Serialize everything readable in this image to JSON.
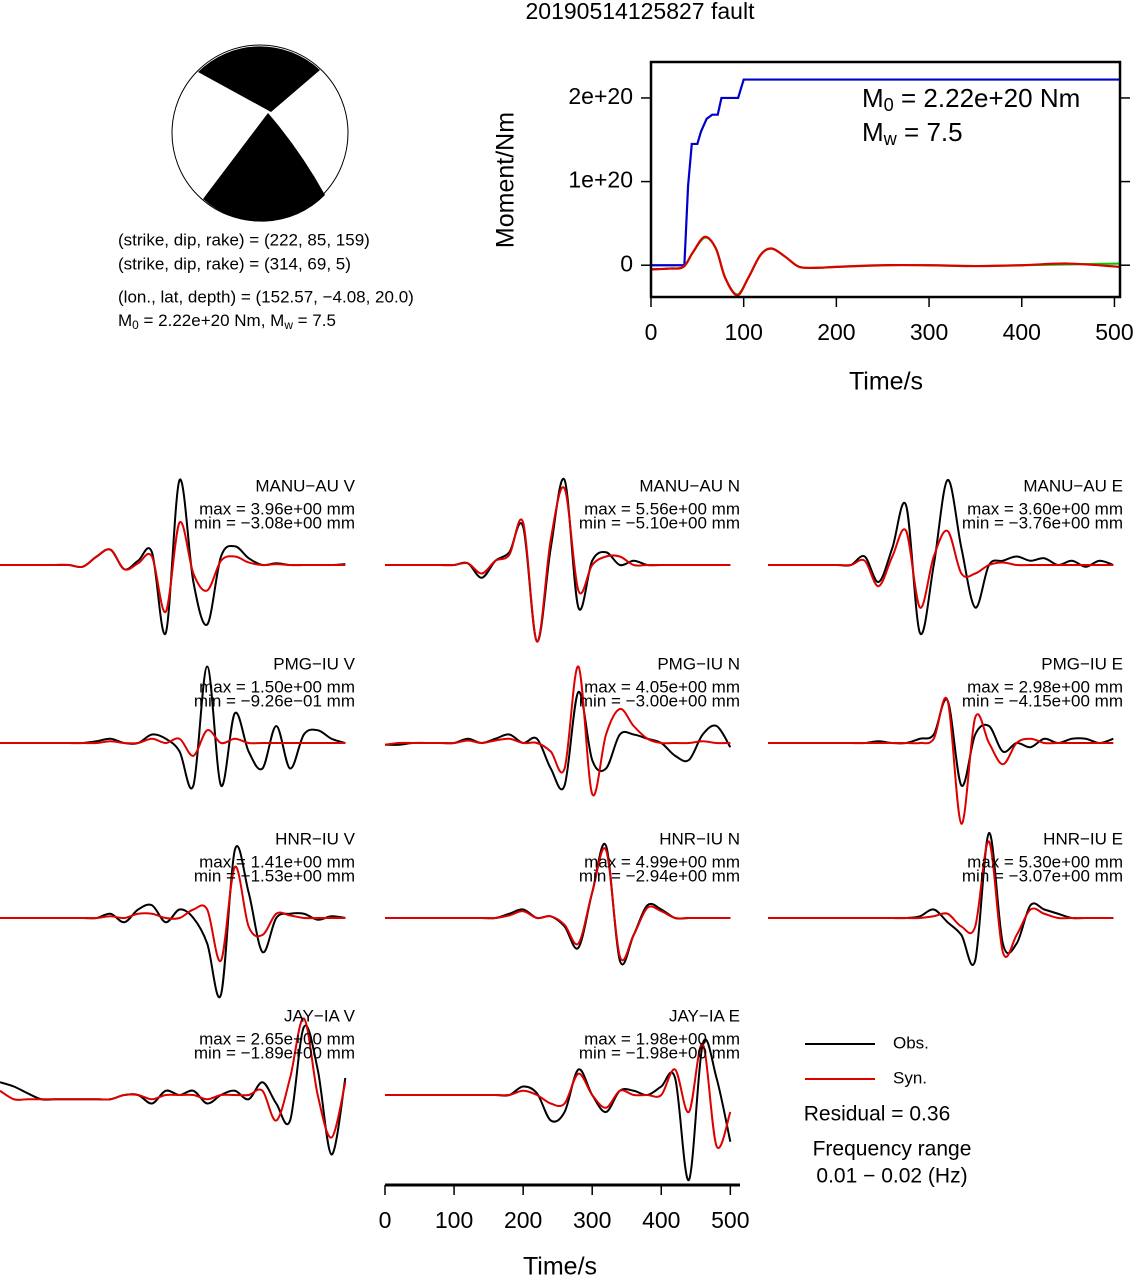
{
  "title": "20190514125827 fault",
  "info": {
    "line1": "(strike, dip, rake) = (222, 85, 159)",
    "line2": "(strike, dip, rake) = (314, 69, 5)",
    "line3": "(lon., lat, depth) = (152.57, −4.08, 20.0)",
    "line4": {
      "m": "M",
      "sub0": "0",
      "mid": " = 2.22e+20 Nm, M",
      "sub1": "w",
      "end": " = 7.5"
    }
  },
  "chart_data": [
    {
      "type": "moment",
      "xlabel": "Time/s",
      "ylabel": "Moment/Nm",
      "xlim": [
        0,
        506
      ],
      "xticks": [
        0,
        100,
        200,
        300,
        400,
        500
      ],
      "ylim": [
        -3.8e+19,
        2.43e+20
      ],
      "yticks": [
        0,
        {
          "value": 1e+20,
          "label": "1e+20"
        },
        {
          "value": 2e+20,
          "label": "2e+20"
        }
      ],
      "annotations": [
        {
          "m": "M",
          "sub": "0",
          "rest": " = 2.22e+20 Nm"
        },
        {
          "m": "M",
          "sub": "w",
          "rest": " = 7.5"
        }
      ],
      "series": [
        {
          "color": "#0000cc",
          "style": "step",
          "x": [
            0,
            36,
            40,
            44,
            50,
            54,
            60,
            66,
            72,
            76,
            94,
            100,
            506
          ],
          "values": [
            0,
            0,
            9.5e+19,
            1.45e+20,
            1.45e+20,
            1.6e+20,
            1.75e+20,
            1.8e+20,
            1.8e+20,
            2e+20,
            2e+20,
            2.22e+20,
            2.22e+20
          ]
        },
        {
          "color": "#00cc00",
          "style": "smooth",
          "x": [
            0,
            20,
            35,
            45,
            58,
            70,
            80,
            93,
            105,
            118,
            130,
            145,
            160,
            180,
            200,
            250,
            300,
            350,
            400,
            450,
            506
          ],
          "values": [
            -5e+18,
            -4e+18,
            -2e+18,
            1.5e+19,
            3.3e+19,
            2e+19,
            -1.5e+19,
            -3.5e+19,
            -1.5e+19,
            1.2e+19,
            2e+19,
            1e+19,
            -2e+18,
            -3e+18,
            -2e+18,
            0,
            0,
            -1e+18,
            0,
            1e+18,
            2e+18
          ]
        },
        {
          "color": "#dd0000",
          "style": "smooth",
          "x": [
            0,
            20,
            35,
            45,
            58,
            70,
            80,
            93,
            105,
            118,
            130,
            145,
            160,
            180,
            200,
            250,
            300,
            350,
            400,
            450,
            506
          ],
          "values": [
            -5e+18,
            -4e+18,
            -2e+18,
            1.5e+19,
            3.4e+19,
            2e+19,
            -1.5e+19,
            -3.6e+19,
            -1.5e+19,
            1.2e+19,
            2e+19,
            1e+19,
            -2e+18,
            -3e+18,
            -2e+18,
            0,
            0,
            -1e+18,
            0,
            2e+18,
            -2e+18
          ]
        }
      ]
    },
    {
      "type": "waveform",
      "xlabel": "Time/s",
      "xlim": [
        0,
        514
      ],
      "xticks": [
        0,
        100,
        200,
        300,
        400,
        500
      ],
      "x": [
        0,
        20,
        40,
        60,
        80,
        100,
        120,
        140,
        160,
        180,
        200,
        220,
        240,
        260,
        280,
        300,
        320,
        340,
        360,
        380,
        400,
        420,
        440,
        460,
        480,
        500
      ],
      "obs_color": "#000000",
      "syn_color": "#dd0000",
      "legend": [
        {
          "name": "Obs.",
          "color": "#000000"
        },
        {
          "name": "Syn.",
          "color": "#dd0000"
        }
      ],
      "residual": "Residual = 0.36",
      "frequency_title": "Frequency range",
      "frequency_range": "0.01 − 0.02 (Hz)",
      "panels": [
        {
          "title": "MANU−AU V",
          "max": "max = 3.96e+00 mm",
          "min": "min = −3.08e+00 mm",
          "obs": [
            0,
            0,
            0,
            0,
            0,
            0,
            -0.02,
            0.1,
            0.18,
            -0.05,
            0.05,
            0.15,
            -0.8,
            1.0,
            -0.2,
            -0.7,
            0.1,
            0.22,
            0.08,
            0,
            0.02,
            0,
            0,
            0,
            0,
            0.01
          ],
          "syn": [
            0,
            0,
            0,
            0,
            0,
            0,
            -0.02,
            0.1,
            0.18,
            -0.05,
            0.02,
            0.1,
            -0.55,
            0.5,
            -0.1,
            -0.3,
            0.05,
            0.1,
            0.03,
            0,
            0.01,
            0,
            0,
            0,
            0,
            0
          ]
        },
        {
          "title": "MANU−AU N",
          "max": "max = 5.56e+00 mm",
          "min": "min = −5.10e+00 mm",
          "obs": [
            0,
            0,
            0,
            0,
            0,
            0,
            0.02,
            -0.15,
            0.05,
            0.15,
            0.45,
            -0.9,
            0.2,
            1.0,
            -0.5,
            0.05,
            0.15,
            0,
            0.05,
            0,
            0,
            0,
            0,
            0,
            0,
            0
          ],
          "syn": [
            0,
            0,
            0,
            0,
            0,
            0,
            0.02,
            -0.1,
            0.05,
            0.12,
            0.5,
            -0.9,
            0.3,
            0.9,
            -0.3,
            0,
            0.1,
            0.1,
            0,
            0,
            0,
            0,
            0,
            0,
            0,
            0
          ]
        },
        {
          "title": "MANU−AU E",
          "max": "max = 3.60e+00 mm",
          "min": "min = −3.76e+00 mm",
          "obs": [
            0,
            0,
            0,
            0,
            0,
            0,
            0,
            0.1,
            -0.2,
            0.2,
            0.7,
            -0.8,
            0,
            1.0,
            0.2,
            -0.5,
            0,
            0.05,
            0.1,
            0.05,
            0.08,
            0,
            0.05,
            -0.02,
            0.05,
            0
          ],
          "syn": [
            0,
            0,
            0,
            0,
            0,
            0,
            0,
            0.05,
            -0.25,
            0.1,
            0.4,
            -0.5,
            0.1,
            0.4,
            -0.1,
            -0.1,
            0,
            0.03,
            0,
            0,
            0,
            0,
            0,
            0,
            0,
            0
          ]
        },
        {
          "title": "PMG−IU V",
          "max": "max = 1.50e+00 mm",
          "min": "min = −9.26e−01 mm",
          "obs": [
            0,
            0,
            0,
            0,
            0,
            0,
            0,
            0.02,
            0.05,
            0,
            0,
            0.1,
            0.05,
            -0.1,
            -0.5,
            0.9,
            -0.5,
            0.35,
            -0.1,
            -0.3,
            0.2,
            -0.3,
            0.1,
            0.15,
            0.05,
            0
          ],
          "syn": [
            0,
            0,
            0,
            0,
            0,
            0,
            0,
            0,
            0.02,
            0,
            0,
            0.05,
            0,
            0.05,
            -0.15,
            0.15,
            0,
            0.05,
            0,
            0,
            0,
            0,
            0,
            0,
            0,
            0
          ]
        },
        {
          "title": "PMG−IU N",
          "max": "max = 4.05e+00 mm",
          "min": "min = −3.00e+00 mm",
          "obs": [
            -0.02,
            -0.02,
            0,
            0,
            0,
            0,
            0.05,
            0,
            0.05,
            0.1,
            0,
            0.05,
            -0.3,
            -0.5,
            0.6,
            -0.2,
            -0.3,
            0.1,
            0.1,
            0.05,
            0,
            -0.15,
            -0.2,
            0.1,
            0.2,
            -0.05
          ],
          "syn": [
            -0.02,
            0,
            0,
            0,
            0,
            0,
            0.03,
            0,
            0.03,
            0.05,
            0,
            0,
            -0.1,
            -0.3,
            0.9,
            -0.6,
            0.1,
            0.4,
            0.2,
            0.05,
            0,
            0,
            0,
            0.02,
            0,
            0
          ]
        },
        {
          "title": "PMG−IU E",
          "max": "max = 2.98e+00 mm",
          "min": "min = −4.15e+00 mm",
          "obs": [
            0,
            0,
            0,
            0,
            0,
            0,
            0,
            0,
            0.02,
            0,
            0,
            0.05,
            0.1,
            0.5,
            -0.5,
            0.1,
            0.2,
            -0.1,
            0,
            -0.05,
            0.05,
            0,
            0.05,
            0.05,
            0,
            0.05
          ],
          "syn": [
            0,
            0,
            0,
            0,
            0,
            0,
            0,
            0,
            0,
            0,
            0,
            0,
            0.05,
            0.5,
            -0.95,
            0.3,
            0,
            -0.25,
            0,
            0.05,
            0,
            0,
            0,
            0,
            0,
            0
          ]
        },
        {
          "title": "HNR−IU V",
          "max": "max = 1.41e+00 mm",
          "min": "min = −1.53e+00 mm",
          "obs": [
            0,
            0,
            0,
            0,
            0,
            0,
            0,
            0,
            0.05,
            -0.05,
            0.1,
            0.15,
            -0.05,
            0.1,
            0,
            -0.3,
            -0.9,
            0.8,
            0.3,
            -0.4,
            0,
            0.05,
            0.05,
            -0.02,
            0.02,
            0
          ],
          "syn": [
            0,
            0,
            0,
            0,
            0,
            0,
            0,
            0,
            0.02,
            0,
            0.05,
            0.05,
            0,
            0,
            0.1,
            0.1,
            -0.5,
            0.6,
            -0.1,
            -0.2,
            0.05,
            0.03,
            0,
            0,
            0,
            0
          ]
        },
        {
          "title": "HNR−IU N",
          "max": "max = 4.99e+00 mm",
          "min": "min = −2.94e+00 mm",
          "obs": [
            0,
            0,
            0,
            0,
            0,
            0,
            0,
            0,
            0,
            0.05,
            0.1,
            0,
            0.02,
            -0.1,
            -0.35,
            0.3,
            0.85,
            -0.5,
            -0.2,
            0.15,
            0.1,
            0,
            0,
            0,
            0,
            0
          ],
          "syn": [
            0,
            0,
            0,
            0,
            0,
            0,
            0,
            0,
            0,
            0.03,
            0.08,
            0,
            0.02,
            -0.08,
            -0.3,
            0.3,
            0.8,
            -0.45,
            -0.2,
            0.12,
            0.08,
            0,
            0,
            0,
            0,
            0
          ]
        },
        {
          "title": "HNR−IU E",
          "max": "max = 5.30e+00 mm",
          "min": "min = −3.07e+00 mm",
          "obs": [
            0,
            0,
            0,
            0,
            0,
            0,
            0,
            0,
            0,
            0,
            0,
            0.02,
            0.1,
            -0.05,
            -0.2,
            -0.5,
            1.0,
            -0.3,
            -0.3,
            0.15,
            0.1,
            0.05,
            0,
            0,
            0,
            0
          ],
          "syn": [
            0,
            0,
            0,
            0,
            0,
            0,
            0,
            0,
            0,
            0,
            0,
            0,
            0.02,
            0.05,
            -0.1,
            -0.1,
            0.9,
            -0.4,
            -0.2,
            0.1,
            0.05,
            0,
            0,
            0,
            0,
            0
          ]
        },
        {
          "title": "JAY−IA V",
          "max": "max = 2.65e+00 mm",
          "min": "min = −1.89e+00 mm",
          "obs": [
            0.15,
            0.1,
            0.02,
            -0.05,
            -0.05,
            -0.05,
            -0.05,
            -0.05,
            -0.05,
            0,
            0,
            -0.1,
            0.05,
            0,
            0.05,
            -0.1,
            0,
            0.05,
            -0.05,
            0.15,
            -0.1,
            -0.3,
            0.8,
            0.3,
            -0.7,
            0.2
          ],
          "syn": [
            0.05,
            -0.05,
            -0.05,
            -0.05,
            -0.05,
            -0.05,
            -0.05,
            -0.05,
            -0.05,
            0,
            0,
            -0.05,
            0,
            0,
            0,
            -0.05,
            0,
            0,
            0,
            0.05,
            -0.3,
            0.2,
            0.9,
            0,
            -0.5,
            0.15
          ]
        },
        {
          "title": "JAY−IA E",
          "max": "max = 1.98e+00 mm",
          "min": "min = −1.98e+00 mm",
          "obs": [
            0,
            0,
            0,
            0,
            0,
            0,
            0,
            0,
            0,
            0,
            0.1,
            0.02,
            -0.3,
            -0.2,
            0.3,
            0,
            -0.2,
            0.05,
            0.05,
            0,
            0.1,
            0.2,
            -1.0,
            0.6,
            0.2,
            -0.55
          ],
          "syn": [
            0,
            0,
            0,
            0,
            0,
            0,
            0,
            0,
            0,
            0,
            0.05,
            0,
            -0.1,
            -0.1,
            0.25,
            0,
            -0.15,
            0.05,
            0,
            0,
            0,
            0.3,
            -0.2,
            0.6,
            -0.6,
            -0.2
          ]
        }
      ]
    }
  ]
}
